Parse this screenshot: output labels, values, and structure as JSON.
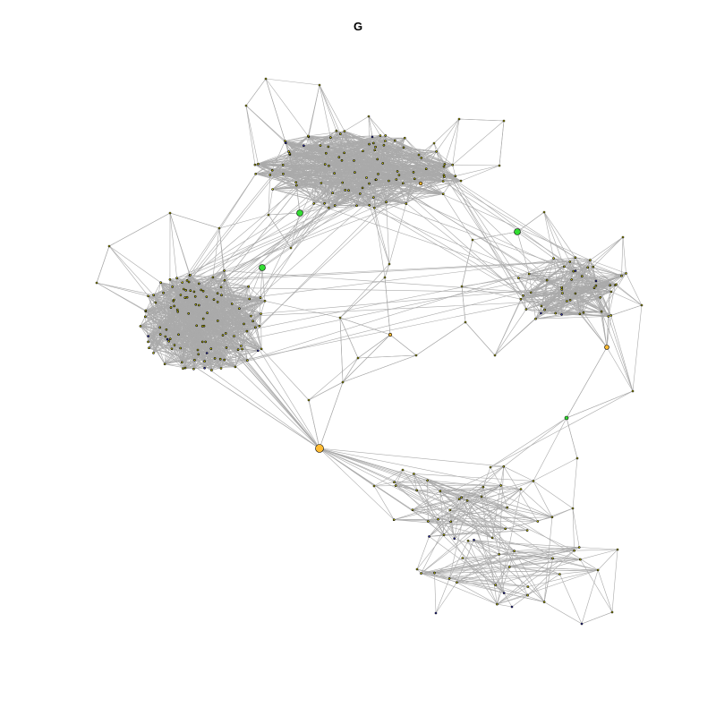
{
  "title": "G",
  "colors": {
    "edge": "#aaaaaa",
    "node_default": "#dede00",
    "node_green": "#33dd33",
    "node_orange": "#ffbb33",
    "node_blue": "#3333cc",
    "background": "#ffffff"
  }
}
